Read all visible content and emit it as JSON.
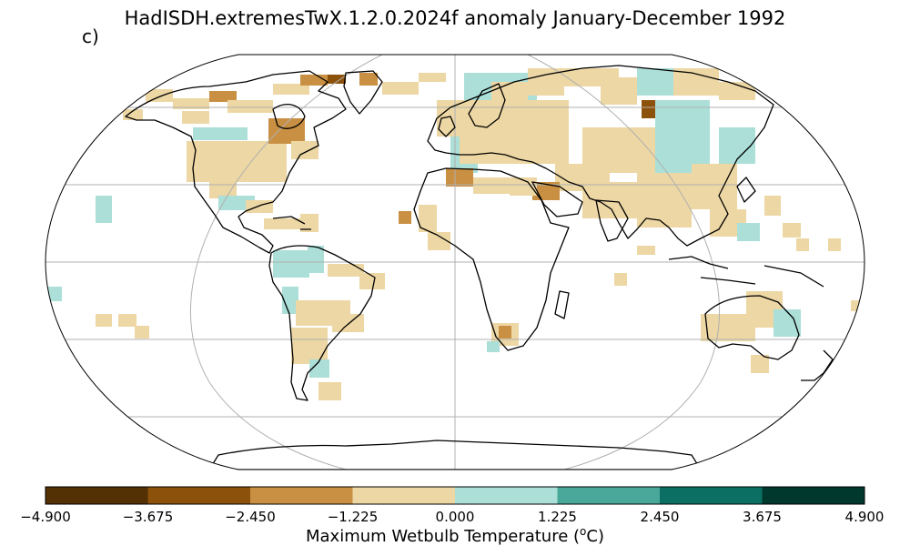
{
  "title": "HadISDH.extremesTwX.1.2.0.2024f anomaly January-December 1992",
  "panel_label": "c)",
  "colorbar": {
    "label": "Maximum Wetbulb Temperature (",
    "label_sup": "o",
    "label_unit": "C)",
    "ticks": [
      "−4.900",
      "−3.675",
      "−2.450",
      "−1.225",
      "0.000",
      "1.225",
      "2.450",
      "3.675",
      "4.900"
    ],
    "tick_values": [
      -4.9,
      -3.675,
      -2.45,
      -1.225,
      0,
      1.225,
      2.45,
      3.675,
      4.9
    ],
    "colors": [
      "#543005",
      "#8c510a",
      "#c99043",
      "#edd7a4",
      "#abdfd8",
      "#4aa89a",
      "#0b6f63",
      "#00382e"
    ]
  },
  "map": {
    "projection": "Robinson",
    "gridlines": {
      "lon_step": 60,
      "lat_step": 30
    },
    "cell_size_deg": 5
  }
}
